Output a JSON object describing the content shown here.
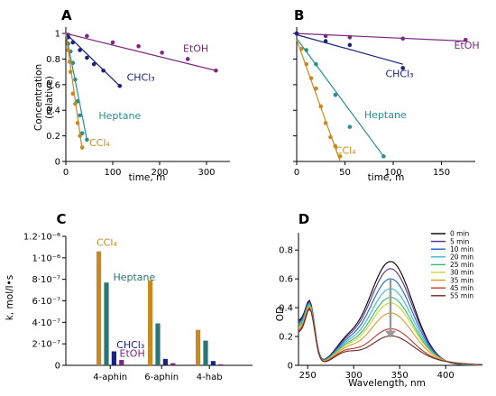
{
  "panels": {
    "A": {
      "letter": "A",
      "type": "scatter",
      "xlabel": "time, m",
      "ylabel_line1": "Concentration",
      "ylabel_line2": "(relative)",
      "xlim": [
        0,
        350
      ],
      "ylim": [
        0,
        1.05
      ],
      "xticks": [
        0,
        100,
        200,
        300
      ],
      "yticks": [
        0,
        0.2,
        0.4,
        0.6,
        0.8,
        1
      ],
      "ytick_labels": [
        "0",
        "0.2",
        "0.4",
        "0.6",
        "0.8",
        "1"
      ],
      "series": [
        {
          "name": "EtOH",
          "color": "#7b2882",
          "points": [
            [
              5,
              0.99
            ],
            [
              45,
              0.98
            ],
            [
              100,
              0.93
            ],
            [
              155,
              0.9
            ],
            [
              205,
              0.85
            ],
            [
              260,
              0.8
            ],
            [
              320,
              0.71
            ]
          ],
          "fit": [
            [
              0,
              1.0
            ],
            [
              320,
              0.71
            ]
          ],
          "label_at": [
            250,
            0.855
          ]
        },
        {
          "name": "CHCl₃",
          "color": "#1a237e",
          "points": [
            [
              5,
              0.97
            ],
            [
              15,
              0.93
            ],
            [
              30,
              0.87
            ],
            [
              45,
              0.81
            ],
            [
              60,
              0.76
            ],
            [
              80,
              0.71
            ],
            [
              115,
              0.59
            ]
          ],
          "fit": [
            [
              0,
              1.0
            ],
            [
              115,
              0.59
            ]
          ],
          "label_at": [
            130,
            0.63
          ]
        },
        {
          "name": "Heptane",
          "color": "#2a8f8f",
          "points": [
            [
              5,
              0.92
            ],
            [
              10,
              0.86
            ],
            [
              15,
              0.77
            ],
            [
              20,
              0.64
            ],
            [
              25,
              0.47
            ],
            [
              30,
              0.36
            ],
            [
              35,
              0.22
            ],
            [
              45,
              0.17
            ]
          ],
          "fit": [
            [
              0,
              1.0
            ],
            [
              45,
              0.17
            ]
          ],
          "label_at": [
            70,
            0.33
          ]
        },
        {
          "name": "CCl₄",
          "color": "#c88a1e",
          "points": [
            [
              5,
              0.87
            ],
            [
              8,
              0.78
            ],
            [
              10,
              0.7
            ],
            [
              15,
              0.53
            ],
            [
              20,
              0.45
            ],
            [
              25,
              0.3
            ],
            [
              30,
              0.2
            ],
            [
              35,
              0.11
            ]
          ],
          "fit": [
            [
              0,
              1.0
            ],
            [
              35,
              0.09
            ]
          ],
          "label_at": [
            50,
            0.12
          ]
        }
      ]
    },
    "B": {
      "letter": "B",
      "type": "scatter",
      "xlabel": "time, m",
      "xlim": [
        0,
        185
      ],
      "ylim": [
        0,
        1.05
      ],
      "xticks": [
        0,
        50,
        100,
        150
      ],
      "yticks": [
        0,
        0.2,
        0.4,
        0.6,
        0.8,
        1
      ],
      "ytick_labels": [
        "0",
        "0.2",
        "0.4",
        "0.6",
        "0.8",
        "1"
      ],
      "series": [
        {
          "name": "EtOH",
          "color": "#7b2882",
          "points": [
            [
              0,
              1.0
            ],
            [
              30,
              0.98
            ],
            [
              55,
              0.97
            ],
            [
              110,
              0.96
            ],
            [
              175,
              0.95
            ]
          ],
          "fit": [
            [
              0,
              1.0
            ],
            [
              175,
              0.94
            ]
          ],
          "label_at": [
            163,
            0.88
          ]
        },
        {
          "name": "CHCl₃",
          "color": "#1a237e",
          "points": [
            [
              0,
              1.0
            ],
            [
              30,
              0.94
            ],
            [
              55,
              0.91
            ],
            [
              110,
              0.73
            ]
          ],
          "fit": [
            [
              0,
              0.99
            ],
            [
              110,
              0.76
            ]
          ],
          "label_at": [
            92,
            0.66
          ]
        },
        {
          "name": "Heptane",
          "color": "#2a8f8f",
          "points": [
            [
              10,
              0.87
            ],
            [
              20,
              0.76
            ],
            [
              40,
              0.52
            ],
            [
              55,
              0.27
            ],
            [
              90,
              0.04
            ]
          ],
          "fit": [
            [
              0,
              0.96
            ],
            [
              90,
              0.04
            ]
          ],
          "label_at": [
            70,
            0.34
          ]
        },
        {
          "name": "CCl₄",
          "color": "#c88a1e",
          "points": [
            [
              5,
              0.88
            ],
            [
              10,
              0.76
            ],
            [
              15,
              0.65
            ],
            [
              20,
              0.57
            ],
            [
              25,
              0.43
            ],
            [
              30,
              0.3
            ],
            [
              35,
              0.19
            ],
            [
              40,
              0.12
            ],
            [
              45,
              0.04
            ]
          ],
          "fit": [
            [
              0,
              0.95
            ],
            [
              45,
              0.0
            ]
          ],
          "label_at": [
            40,
            0.06
          ]
        }
      ]
    },
    "C": {
      "letter": "C",
      "type": "bar",
      "ylabel": "k, mol/l•s",
      "ylim": [
        0,
        1.2e-06
      ],
      "yticks": [
        0,
        2e-07,
        4e-07,
        6e-07,
        8e-07,
        1e-06,
        1.2e-06
      ],
      "ytick_labels": [
        "0",
        "2·10⁻⁷",
        "4·10⁻⁷",
        "6·10⁻⁷",
        "8·10⁻⁷",
        "1·10⁻⁶",
        "1.2·10⁻⁶"
      ],
      "categories": [
        "4-aphin",
        "6-aphin",
        "4-hab"
      ],
      "series": [
        {
          "name": "CCl₄",
          "color": "#c88a1e",
          "values": [
            1.06e-06,
            7.9e-07,
            3.3e-07
          ]
        },
        {
          "name": "Heptane",
          "color": "#2a7575",
          "values": [
            7.7e-07,
            3.9e-07,
            2.3e-07
          ]
        },
        {
          "name": "CHCl₃",
          "color": "#1a237e",
          "values": [
            1.3e-07,
            6e-08,
            4e-08
          ]
        },
        {
          "name": "EtOH",
          "color": "#7b2882",
          "values": [
            5e-08,
            2e-08,
            1e-08
          ]
        }
      ],
      "labels": [
        {
          "text": "CCl₄",
          "color": "#c88a1e",
          "x": 0,
          "y": 1.11e-06
        },
        {
          "text": "Heptane",
          "color": "#2a7575",
          "x": 0.55,
          "y": 7.9e-07
        },
        {
          "text": "CHCl₃",
          "color": "#1a237e",
          "x": 0.66,
          "y": 1.6e-07
        },
        {
          "text": "EtOH",
          "color": "#7b2882",
          "x": 0.76,
          "y": 8e-08
        }
      ]
    },
    "D": {
      "letter": "D",
      "type": "line",
      "xlabel": "Wavelength, nm",
      "ylabel": "OD",
      "xlim": [
        240,
        440
      ],
      "ylim": [
        0,
        0.92
      ],
      "xticks": [
        250,
        300,
        350,
        400
      ],
      "yticks": [
        0,
        0.2,
        0.4,
        0.6,
        0.8
      ],
      "ytick_labels": [
        "0",
        "0.2",
        "0.4",
        "0.6",
        "0.8"
      ],
      "arrow": {
        "x": 340,
        "y_start": 0.6,
        "y_end": 0.19,
        "color": "#999999"
      },
      "series": [
        {
          "name": "0 min",
          "color": "#000000",
          "peak": 0.72
        },
        {
          "name": "5 min",
          "color": "#5b2d8e",
          "peak": 0.67
        },
        {
          "name": "10 min",
          "color": "#1e5fd8",
          "peak": 0.6
        },
        {
          "name": "20 min",
          "color": "#35b8d8",
          "peak": 0.53
        },
        {
          "name": "25 min",
          "color": "#2ebc6e",
          "peak": 0.47
        },
        {
          "name": "30 min",
          "color": "#c8d82a",
          "peak": 0.43
        },
        {
          "name": "35 min",
          "color": "#e8952a",
          "peak": 0.36
        },
        {
          "name": "45 min",
          "color": "#c0392b",
          "peak": 0.25
        },
        {
          "name": "55 min",
          "color": "#6b2a2a",
          "peak": 0.2
        }
      ]
    }
  }
}
